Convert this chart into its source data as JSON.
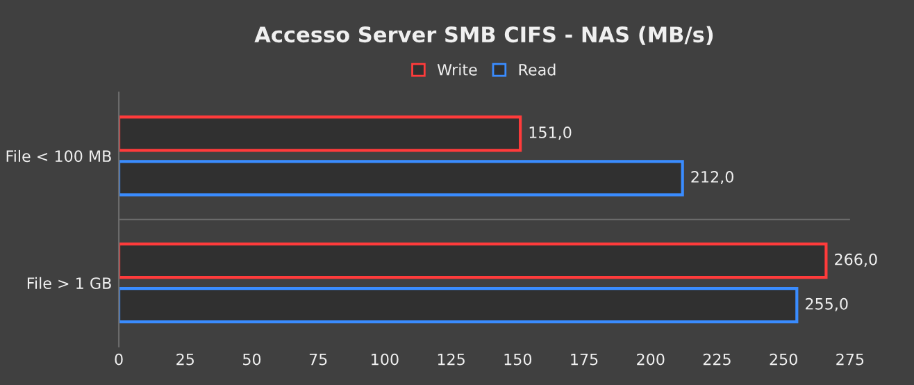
{
  "chart_data": {
    "type": "bar",
    "orientation": "horizontal",
    "title": "Accesso Server SMB CIFS - NAS (MB/s)",
    "categories": [
      "File < 100 MB",
      "File > 1 GB"
    ],
    "series": [
      {
        "name": "Write",
        "color": "#ff3b3b",
        "values": [
          151,
          266
        ],
        "value_labels": [
          "151,0",
          "266,0"
        ]
      },
      {
        "name": "Read",
        "color": "#3a8cff",
        "values": [
          212,
          255
        ],
        "value_labels": [
          "212,0",
          "255,0"
        ]
      }
    ],
    "xlim": [
      0,
      275
    ],
    "xticks": [
      0,
      25,
      50,
      75,
      100,
      125,
      150,
      175,
      200,
      225,
      250,
      275
    ],
    "grid": "y",
    "legend": "top"
  }
}
